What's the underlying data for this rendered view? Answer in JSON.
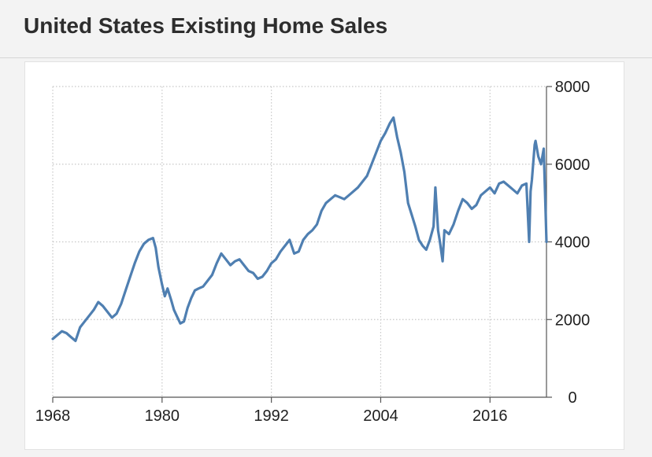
{
  "header": {
    "title": "United States Existing Home Sales"
  },
  "colors": {
    "line": "#4f7fb1",
    "grid": "#c8c8c8",
    "text": "#1f1f1f"
  },
  "chart_data": {
    "type": "line",
    "title": "United States Existing Home Sales",
    "xlabel": "",
    "ylabel": "",
    "xlim": [
      1968,
      2022.2
    ],
    "ylim": [
      0,
      8000
    ],
    "x_ticks": [
      "1968",
      "1980",
      "1992",
      "2004",
      "2016"
    ],
    "y_ticks": [
      "0",
      "2000",
      "4000",
      "6000",
      "8000"
    ],
    "y_axis_side": "right",
    "grid": true,
    "series": [
      {
        "name": "",
        "x": [
          1968.0,
          1968.5,
          1969.0,
          1969.5,
          1970.0,
          1970.5,
          1971.0,
          1971.5,
          1972.0,
          1972.5,
          1973.0,
          1973.5,
          1974.0,
          1974.5,
          1975.0,
          1975.5,
          1976.0,
          1976.5,
          1977.0,
          1977.5,
          1978.0,
          1978.5,
          1979.0,
          1979.3,
          1979.6,
          1980.0,
          1980.3,
          1980.6,
          1981.0,
          1981.3,
          1981.7,
          1982.0,
          1982.4,
          1982.8,
          1983.2,
          1983.6,
          1984.0,
          1984.5,
          1985.0,
          1985.5,
          1986.0,
          1986.5,
          1987.0,
          1987.5,
          1988.0,
          1988.5,
          1989.0,
          1989.5,
          1990.0,
          1990.5,
          1991.0,
          1991.5,
          1992.0,
          1992.5,
          1993.0,
          1993.5,
          1994.0,
          1994.5,
          1995.0,
          1995.5,
          1996.0,
          1996.5,
          1997.0,
          1997.5,
          1998.0,
          1998.5,
          1999.0,
          1999.5,
          2000.0,
          2000.5,
          2001.0,
          2001.5,
          2002.0,
          2002.5,
          2003.0,
          2003.5,
          2004.0,
          2004.5,
          2005.0,
          2005.4,
          2005.8,
          2006.2,
          2006.6,
          2007.0,
          2007.4,
          2007.8,
          2008.2,
          2008.6,
          2009.0,
          2009.4,
          2009.8,
          2010.0,
          2010.3,
          2010.5,
          2010.8,
          2011.0,
          2011.5,
          2012.0,
          2012.5,
          2013.0,
          2013.5,
          2014.0,
          2014.5,
          2015.0,
          2015.5,
          2016.0,
          2016.5,
          2017.0,
          2017.5,
          2018.0,
          2018.5,
          2019.0,
          2019.5,
          2020.0,
          2020.3,
          2020.45,
          2020.6,
          2020.9,
          2021.0,
          2021.3,
          2021.6,
          2021.9,
          2022.2
        ],
        "values": [
          1500,
          1600,
          1700,
          1650,
          1550,
          1450,
          1800,
          1950,
          2100,
          2250,
          2450,
          2350,
          2200,
          2050,
          2150,
          2400,
          2750,
          3100,
          3450,
          3750,
          3950,
          4050,
          4100,
          3850,
          3350,
          2900,
          2600,
          2800,
          2500,
          2250,
          2050,
          1900,
          1950,
          2300,
          2550,
          2750,
          2800,
          2850,
          3000,
          3150,
          3450,
          3700,
          3550,
          3400,
          3500,
          3550,
          3400,
          3250,
          3200,
          3050,
          3100,
          3250,
          3450,
          3550,
          3750,
          3900,
          4050,
          3700,
          3750,
          4050,
          4200,
          4300,
          4450,
          4800,
          5000,
          5100,
          5200,
          5150,
          5100,
          5200,
          5300,
          5400,
          5550,
          5700,
          6000,
          6300,
          6600,
          6800,
          7050,
          7200,
          6700,
          6300,
          5800,
          5000,
          4700,
          4400,
          4050,
          3900,
          3800,
          4050,
          4400,
          5400,
          4300,
          4000,
          3500,
          4300,
          4200,
          4450,
          4800,
          5100,
          5000,
          4850,
          4950,
          5200,
          5300,
          5400,
          5250,
          5500,
          5550,
          5450,
          5350,
          5250,
          5450,
          5500,
          4000,
          5300,
          5600,
          6500,
          6600,
          6200,
          6000,
          6400,
          4000
        ]
      }
    ]
  }
}
